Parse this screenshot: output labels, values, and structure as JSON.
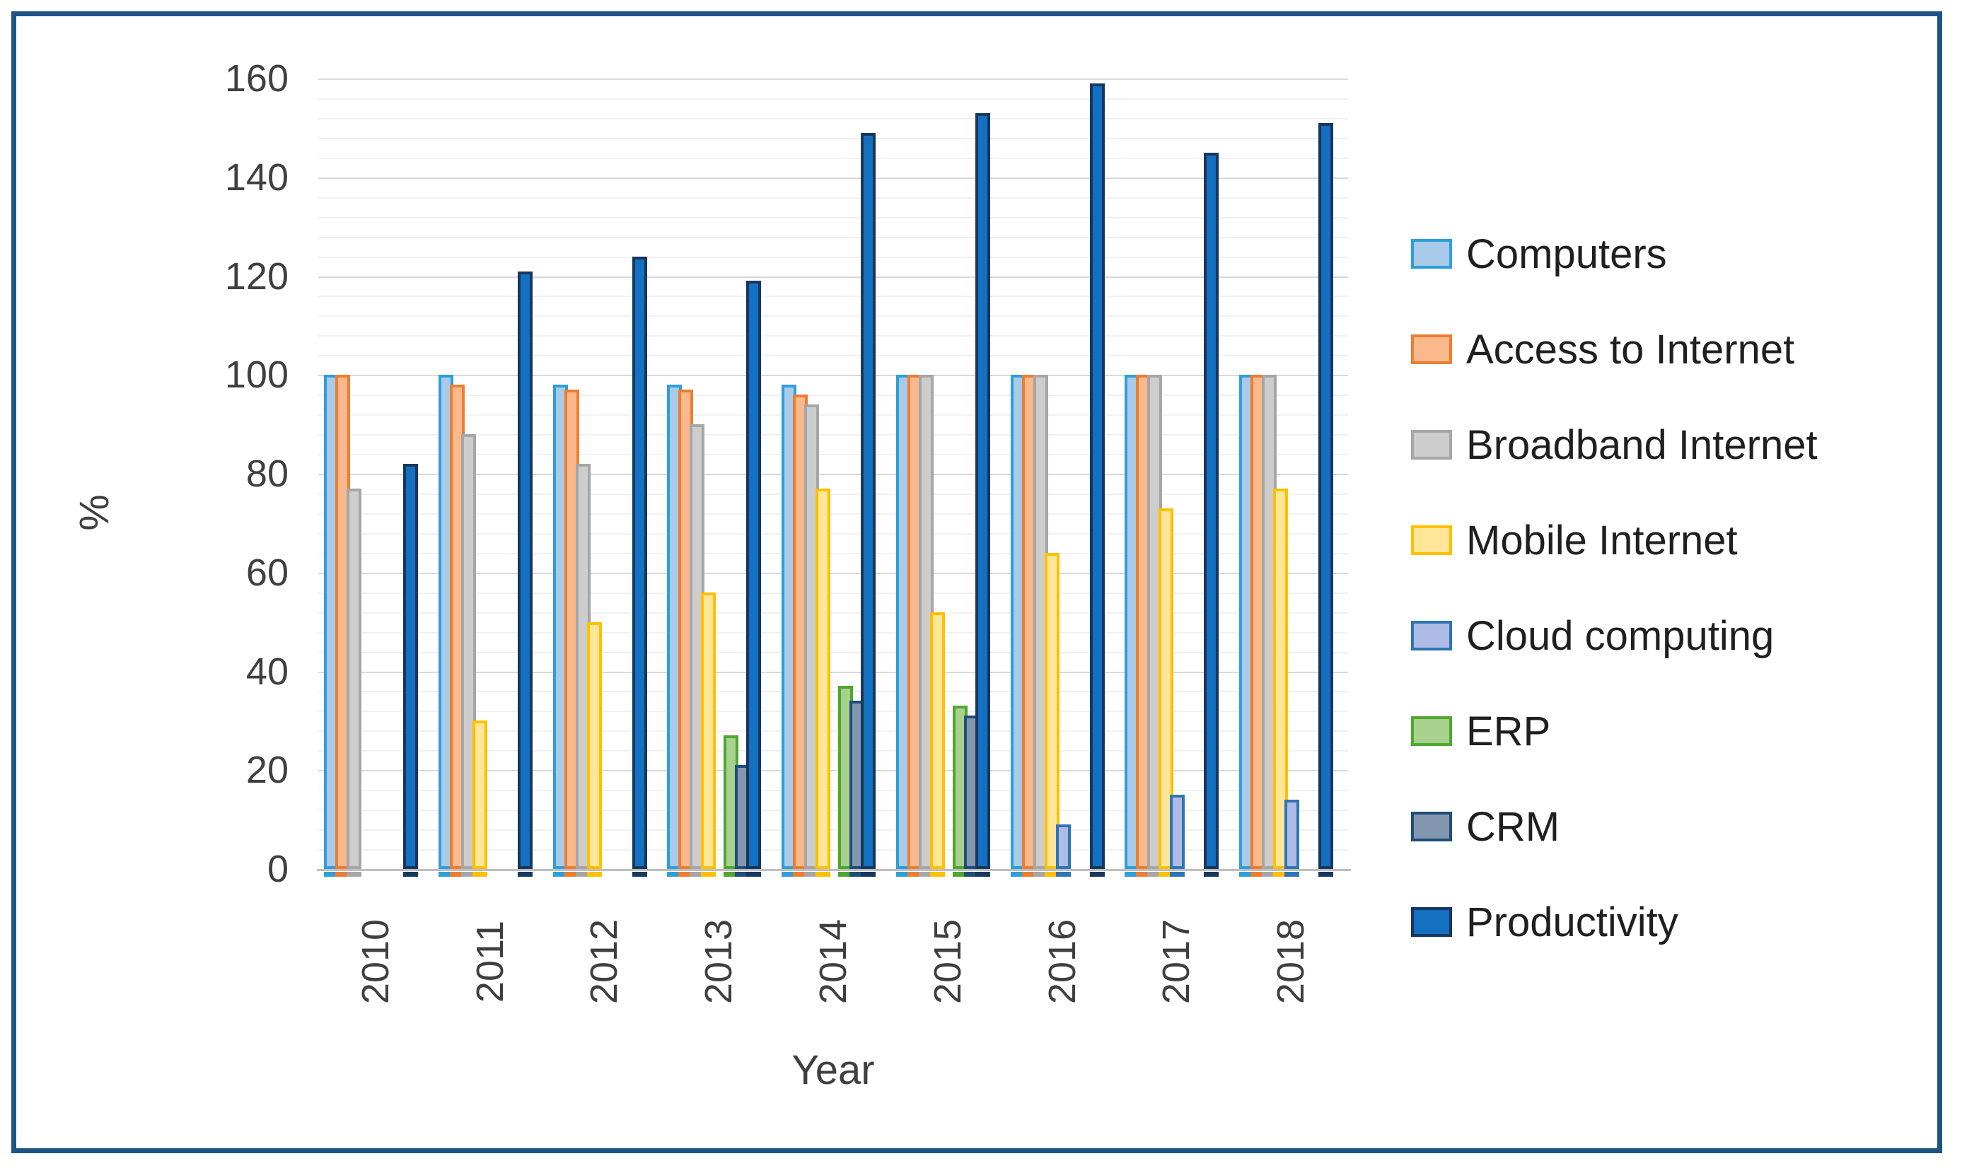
{
  "frame_color": "#1d5484",
  "chart_data": {
    "type": "bar",
    "title": "",
    "xlabel": "Year",
    "ylabel": "%",
    "ylim": [
      0,
      160
    ],
    "y_major_step": 20,
    "y_minor_step": 4,
    "y_ticks": [
      "0",
      "20",
      "40",
      "60",
      "80",
      "100",
      "120",
      "140",
      "160"
    ],
    "grid": "on",
    "grid_minor_color": "#f1f1f1",
    "grid_major_color": "#d9d9d9",
    "axis_line_color": "#bfbfbf",
    "legend_position": "right",
    "categories": [
      "2010",
      "2011",
      "2012",
      "2013",
      "2014",
      "2015",
      "2016",
      "2017",
      "2018"
    ],
    "series": [
      {
        "name": "Computers",
        "fill": "#a8cbe9",
        "border": "#2e9fd9",
        "values": [
          100,
          100,
          98,
          98,
          98,
          100,
          100,
          100,
          100
        ]
      },
      {
        "name": "Access to Internet",
        "fill": "#f9b98c",
        "border": "#ed7d31",
        "values": [
          100,
          98,
          97,
          97,
          96,
          100,
          100,
          100,
          100
        ]
      },
      {
        "name": "Broadband Internet",
        "fill": "#cdcdcd",
        "border": "#a6a6a6",
        "values": [
          77,
          88,
          82,
          90,
          94,
          100,
          100,
          100,
          100
        ]
      },
      {
        "name": "Mobile Internet",
        "fill": "#ffe699",
        "border": "#ffc000",
        "values": [
          0,
          30,
          50,
          56,
          77,
          52,
          64,
          73,
          77
        ]
      },
      {
        "name": "Cloud computing",
        "fill": "#aebbe6",
        "border": "#2e75b6",
        "values": [
          0,
          0,
          0,
          0,
          0,
          0,
          9,
          15,
          14
        ]
      },
      {
        "name": "ERP",
        "fill": "#a9d18e",
        "border": "#4ea72e",
        "values": [
          0,
          0,
          0,
          27,
          37,
          33,
          0,
          0,
          0
        ]
      },
      {
        "name": "CRM",
        "fill": "#8497b0",
        "border": "#1f4e79",
        "values": [
          0,
          0,
          0,
          21,
          34,
          31,
          0,
          0,
          0
        ]
      },
      {
        "name": "Productivity",
        "fill": "#1470c0",
        "border": "#17375e",
        "values": [
          82,
          121,
          124,
          119,
          149,
          153,
          159,
          145,
          151
        ]
      }
    ]
  }
}
